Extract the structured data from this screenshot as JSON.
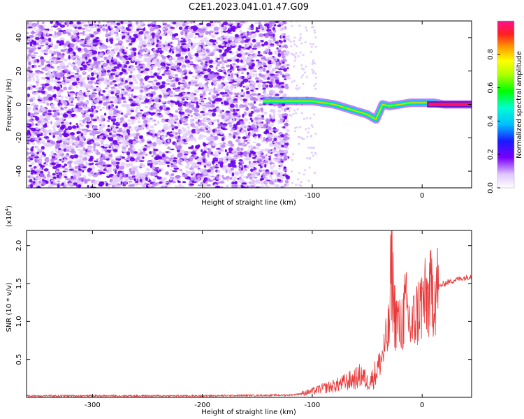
{
  "title": "C2E1.2023.041.01.47.G09",
  "chart_data": [
    {
      "type": "heatmap",
      "xlabel": "Height of straight line (km)",
      "ylabel": "Frequency (Hz)",
      "xlim": [
        -360,
        45
      ],
      "ylim": [
        -50,
        50
      ],
      "xticks": [
        -300,
        -200,
        -100,
        0
      ],
      "xtick_labels": [
        "-300",
        "-200",
        "-100",
        "0"
      ],
      "yticks": [
        -40,
        -20,
        0,
        20,
        40
      ],
      "ytick_labels": [
        "-40",
        "-20",
        "0",
        "20",
        "40"
      ],
      "grid": false,
      "colorbar": {
        "label": "Normalized spectral amplitude",
        "range": [
          0,
          1
        ],
        "ticks": [
          0,
          0.2,
          0.4,
          0.6,
          0.8
        ],
        "tick_labels": [
          "0.0",
          "0.2",
          "0.4",
          "0.6",
          "0.8"
        ]
      },
      "signal_track": {
        "x": [
          -145,
          -120,
          -100,
          -90,
          -80,
          -70,
          -60,
          -50,
          -42,
          -36,
          -30,
          -20,
          -10,
          0,
          10,
          20,
          45
        ],
        "y": [
          2,
          2,
          2,
          1,
          0,
          -2,
          -4,
          -6,
          -9,
          0,
          -1,
          0,
          1,
          1,
          1,
          0,
          0
        ]
      },
      "noise_cutoff_x": -122
    },
    {
      "type": "line",
      "xlabel": "Height of straight line (km)",
      "ylabel": "SNR (10 * v/v)",
      "y_multiplier_label": "(x10",
      "y_multiplier_exp": "4",
      "y_multiplier_close": ")",
      "xlim": [
        -360,
        45
      ],
      "ylim": [
        0,
        2.2
      ],
      "xticks": [
        -300,
        -200,
        -100,
        0
      ],
      "xtick_labels": [
        "-300",
        "-200",
        "-100",
        "0"
      ],
      "yticks": [
        0.5,
        1.0,
        1.5,
        2.0
      ],
      "ytick_labels": [
        "0.5",
        "1.0",
        "1.5",
        "2.0"
      ],
      "grid": false,
      "series": [
        {
          "color": "#e83a3a",
          "x": [
            -360,
            -300,
            -200,
            -120,
            -110,
            -100,
            -90,
            -80,
            -70,
            -60,
            -55,
            -50,
            -45,
            -40,
            -35,
            -30,
            -28,
            -25,
            -22,
            -20,
            -15,
            -10,
            -5,
            0,
            5,
            10,
            15,
            20,
            30,
            40,
            45
          ],
          "y": [
            0.02,
            0.02,
            0.02,
            0.03,
            0.05,
            0.08,
            0.12,
            0.15,
            0.2,
            0.25,
            0.3,
            0.2,
            0.25,
            0.4,
            0.6,
            0.9,
            1.8,
            1.1,
            1.0,
            0.9,
            1.2,
            0.9,
            1.1,
            1.25,
            1.3,
            1.4,
            1.45,
            1.5,
            1.55,
            1.58,
            1.6
          ]
        }
      ]
    }
  ]
}
